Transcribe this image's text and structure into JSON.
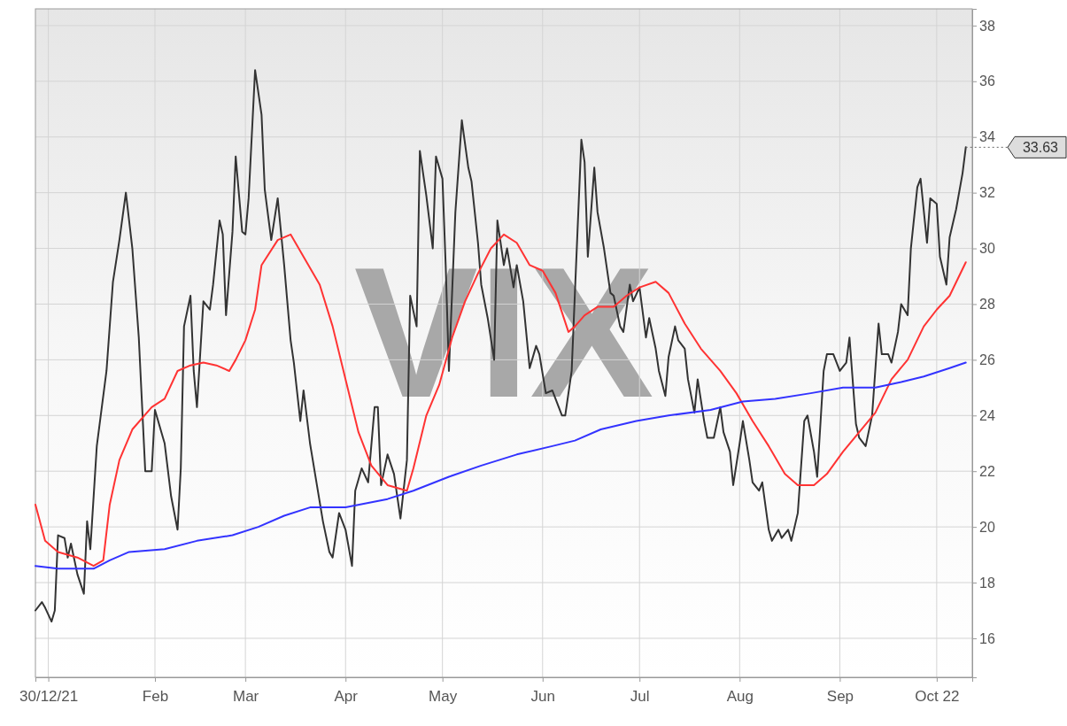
{
  "chart_data": {
    "type": "line",
    "title": "VIX",
    "xlim": [
      "2021-12-26",
      "2022-10-12"
    ],
    "ylim": [
      14.6,
      38.6
    ],
    "xticks": [
      {
        "value": "2021-12-30",
        "label": "30/12/21"
      },
      {
        "value": "2022-02-01",
        "label": "Feb"
      },
      {
        "value": "2022-03-01",
        "label": "Mar"
      },
      {
        "value": "2022-04-01",
        "label": "Apr"
      },
      {
        "value": "2022-05-01",
        "label": "May"
      },
      {
        "value": "2022-06-01",
        "label": "Jun"
      },
      {
        "value": "2022-07-01",
        "label": "Jul"
      },
      {
        "value": "2022-08-01",
        "label": "Aug"
      },
      {
        "value": "2022-09-01",
        "label": "Sep"
      },
      {
        "value": "2022-10-01",
        "label": "Oct 22"
      }
    ],
    "yticks": [
      16,
      18,
      20,
      22,
      24,
      26,
      28,
      30,
      32,
      34,
      36,
      38
    ],
    "grid": true,
    "marker": "none",
    "line_style": "solid",
    "annotations": [
      {
        "text": "33.63",
        "x": "2022-10-10",
        "y": 33.63
      }
    ],
    "series": [
      {
        "color": "#333333",
        "x": [
          "2021-12-26",
          "2021-12-28",
          "2021-12-29",
          "2021-12-31",
          "2022-01-01",
          "2022-01-02",
          "2022-01-04",
          "2022-01-05",
          "2022-01-06",
          "2022-01-08",
          "2022-01-10",
          "2022-01-11",
          "2022-01-12",
          "2022-01-14",
          "2022-01-17",
          "2022-01-19",
          "2022-01-21",
          "2022-01-23",
          "2022-01-25",
          "2022-01-27",
          "2022-01-29",
          "2022-01-31",
          "2022-02-01",
          "2022-02-03",
          "2022-02-04",
          "2022-02-06",
          "2022-02-08",
          "2022-02-09",
          "2022-02-10",
          "2022-02-12",
          "2022-02-13",
          "2022-02-14",
          "2022-02-16",
          "2022-02-18",
          "2022-02-19",
          "2022-02-21",
          "2022-02-22",
          "2022-02-23",
          "2022-02-25",
          "2022-02-26",
          "2022-02-28",
          "2022-03-01",
          "2022-03-02",
          "2022-03-04",
          "2022-03-06",
          "2022-03-07",
          "2022-03-09",
          "2022-03-11",
          "2022-03-13",
          "2022-03-15",
          "2022-03-16",
          "2022-03-18",
          "2022-03-19",
          "2022-03-21",
          "2022-03-23",
          "2022-03-25",
          "2022-03-27",
          "2022-03-28",
          "2022-03-30",
          "2022-04-01",
          "2022-04-03",
          "2022-04-04",
          "2022-04-06",
          "2022-04-08",
          "2022-04-10",
          "2022-04-11",
          "2022-04-12",
          "2022-04-14",
          "2022-04-16",
          "2022-04-18",
          "2022-04-20",
          "2022-04-21",
          "2022-04-23",
          "2022-04-24",
          "2022-04-26",
          "2022-04-28",
          "2022-04-29",
          "2022-05-01",
          "2022-05-02",
          "2022-05-03",
          "2022-05-05",
          "2022-05-07",
          "2022-05-09",
          "2022-05-10",
          "2022-05-12",
          "2022-05-13",
          "2022-05-15",
          "2022-05-17",
          "2022-05-18",
          "2022-05-20",
          "2022-05-21",
          "2022-05-23",
          "2022-05-24",
          "2022-05-26",
          "2022-05-28",
          "2022-05-30",
          "2022-05-31",
          "2022-06-02",
          "2022-06-04",
          "2022-06-07",
          "2022-06-08",
          "2022-06-10",
          "2022-06-11",
          "2022-06-13",
          "2022-06-14",
          "2022-06-15",
          "2022-06-17",
          "2022-06-18",
          "2022-06-20",
          "2022-06-22",
          "2022-06-23",
          "2022-06-25",
          "2022-06-26",
          "2022-06-28",
          "2022-06-29",
          "2022-07-01",
          "2022-07-03",
          "2022-07-04",
          "2022-07-06",
          "2022-07-07",
          "2022-07-09",
          "2022-07-10",
          "2022-07-12",
          "2022-07-13",
          "2022-07-15",
          "2022-07-16",
          "2022-07-18",
          "2022-07-19",
          "2022-07-21",
          "2022-07-22",
          "2022-07-24",
          "2022-07-26",
          "2022-07-27",
          "2022-07-29",
          "2022-07-30",
          "2022-08-01",
          "2022-08-02",
          "2022-08-04",
          "2022-08-05",
          "2022-08-07",
          "2022-08-08",
          "2022-08-10",
          "2022-08-11",
          "2022-08-13",
          "2022-08-14",
          "2022-08-16",
          "2022-08-17",
          "2022-08-19",
          "2022-08-21",
          "2022-08-22",
          "2022-08-24",
          "2022-08-25",
          "2022-08-27",
          "2022-08-28",
          "2022-08-30",
          "2022-09-01",
          "2022-09-03",
          "2022-09-04",
          "2022-09-06",
          "2022-09-07",
          "2022-09-09",
          "2022-09-11",
          "2022-09-13",
          "2022-09-14",
          "2022-09-16",
          "2022-09-17",
          "2022-09-19",
          "2022-09-20",
          "2022-09-22",
          "2022-09-23",
          "2022-09-25",
          "2022-09-26",
          "2022-09-28",
          "2022-09-29",
          "2022-10-01",
          "2022-10-02",
          "2022-10-04",
          "2022-10-05",
          "2022-10-07",
          "2022-10-09",
          "2022-10-10"
        ],
        "values": [
          17.0,
          17.3,
          17.1,
          16.6,
          17.0,
          19.7,
          19.6,
          18.9,
          19.4,
          18.3,
          17.6,
          20.2,
          19.2,
          22.9,
          25.6,
          28.8,
          30.3,
          32.0,
          30.0,
          26.8,
          22.0,
          22.0,
          24.2,
          23.4,
          23.0,
          21.1,
          19.9,
          22.1,
          27.2,
          28.3,
          25.6,
          24.3,
          28.1,
          27.8,
          28.7,
          31.0,
          30.5,
          27.6,
          30.6,
          33.3,
          30.6,
          30.5,
          31.8,
          36.4,
          34.8,
          32.1,
          30.3,
          31.8,
          29.4,
          26.7,
          25.9,
          23.8,
          24.9,
          23.0,
          21.6,
          20.2,
          19.1,
          18.9,
          20.5,
          19.9,
          18.6,
          21.3,
          22.1,
          21.6,
          24.3,
          24.3,
          21.5,
          22.6,
          21.9,
          20.3,
          22.4,
          28.3,
          27.2,
          33.5,
          31.9,
          30.0,
          33.3,
          32.5,
          29.4,
          25.6,
          31.3,
          34.6,
          32.9,
          32.4,
          30.2,
          28.7,
          27.5,
          26.0,
          31.0,
          29.4,
          30.0,
          28.6,
          29.4,
          28.1,
          25.7,
          26.5,
          26.2,
          24.8,
          24.9,
          24.0,
          24.0,
          25.6,
          28.4,
          33.9,
          33.1,
          29.7,
          32.9,
          31.3,
          30.0,
          28.4,
          28.3,
          27.2,
          27.0,
          28.7,
          28.1,
          28.6,
          26.8,
          27.5,
          26.4,
          25.6,
          24.7,
          26.1,
          27.2,
          26.7,
          26.4,
          25.3,
          24.1,
          25.3,
          23.8,
          23.2,
          23.2,
          24.3,
          23.4,
          22.7,
          21.5,
          23.0,
          23.8,
          22.4,
          21.6,
          21.3,
          21.6,
          19.9,
          19.5,
          19.9,
          19.6,
          19.9,
          19.5,
          20.5,
          23.8,
          24.0,
          22.7,
          21.8,
          25.6,
          26.2,
          26.2,
          25.6,
          25.9,
          26.8,
          23.7,
          23.2,
          22.9,
          24.0,
          27.3,
          26.2,
          26.2,
          25.9,
          27.0,
          28.0,
          27.6,
          30.0,
          32.2,
          32.5,
          30.2,
          31.8,
          31.6,
          29.7,
          28.7,
          30.4,
          31.4,
          32.7,
          33.63
        ]
      },
      {
        "color": "#ff3333",
        "x": [
          "2021-12-26",
          "2021-12-29",
          "2022-01-02",
          "2022-01-08",
          "2022-01-13",
          "2022-01-16",
          "2022-01-18",
          "2022-01-21",
          "2022-01-25",
          "2022-01-31",
          "2022-02-04",
          "2022-02-08",
          "2022-02-12",
          "2022-02-16",
          "2022-02-20",
          "2022-02-24",
          "2022-02-26",
          "2022-03-01",
          "2022-03-04",
          "2022-03-06",
          "2022-03-11",
          "2022-03-15",
          "2022-03-19",
          "2022-03-24",
          "2022-03-28",
          "2022-04-01",
          "2022-04-05",
          "2022-04-09",
          "2022-04-14",
          "2022-04-20",
          "2022-04-22",
          "2022-04-26",
          "2022-04-30",
          "2022-05-04",
          "2022-05-08",
          "2022-05-12",
          "2022-05-16",
          "2022-05-20",
          "2022-05-24",
          "2022-05-28",
          "2022-06-01",
          "2022-06-05",
          "2022-06-09",
          "2022-06-11",
          "2022-06-14",
          "2022-06-18",
          "2022-06-23",
          "2022-06-27",
          "2022-07-01",
          "2022-07-06",
          "2022-07-10",
          "2022-07-15",
          "2022-07-20",
          "2022-07-26",
          "2022-07-31",
          "2022-08-05",
          "2022-08-10",
          "2022-08-15",
          "2022-08-19",
          "2022-08-24",
          "2022-08-28",
          "2022-09-02",
          "2022-09-07",
          "2022-09-12",
          "2022-09-17",
          "2022-09-22",
          "2022-09-27",
          "2022-10-01",
          "2022-10-05",
          "2022-10-10"
        ],
        "values": [
          20.8,
          19.5,
          19.1,
          18.9,
          18.6,
          18.8,
          20.8,
          22.4,
          23.5,
          24.3,
          24.6,
          25.6,
          25.8,
          25.9,
          25.8,
          25.6,
          26.0,
          26.7,
          27.8,
          29.4,
          30.3,
          30.5,
          29.7,
          28.7,
          27.2,
          25.3,
          23.4,
          22.2,
          21.5,
          21.3,
          22.1,
          24.0,
          25.1,
          26.8,
          28.1,
          29.1,
          30.0,
          30.5,
          30.2,
          29.4,
          29.2,
          28.4,
          27.0,
          27.2,
          27.6,
          27.9,
          27.9,
          28.3,
          28.6,
          28.8,
          28.4,
          27.3,
          26.4,
          25.6,
          24.8,
          23.8,
          22.9,
          21.9,
          21.5,
          21.5,
          21.9,
          22.7,
          23.4,
          24.1,
          25.3,
          26.0,
          27.2,
          27.8,
          28.3,
          29.5
        ]
      },
      {
        "color": "#3333ff",
        "x": [
          "2021-12-26",
          "2022-01-02",
          "2022-01-13",
          "2022-01-18",
          "2022-01-24",
          "2022-02-04",
          "2022-02-14",
          "2022-02-25",
          "2022-03-05",
          "2022-03-13",
          "2022-03-21",
          "2022-04-01",
          "2022-04-14",
          "2022-04-22",
          "2022-05-03",
          "2022-05-13",
          "2022-05-24",
          "2022-06-04",
          "2022-06-11",
          "2022-06-19",
          "2022-06-30",
          "2022-07-10",
          "2022-07-23",
          "2022-08-02",
          "2022-08-12",
          "2022-08-23",
          "2022-09-02",
          "2022-09-12",
          "2022-09-20",
          "2022-09-27",
          "2022-10-05",
          "2022-10-10"
        ],
        "values": [
          18.6,
          18.5,
          18.5,
          18.8,
          19.1,
          19.2,
          19.5,
          19.7,
          20.0,
          20.4,
          20.7,
          20.7,
          21.0,
          21.3,
          21.8,
          22.2,
          22.6,
          22.9,
          23.1,
          23.5,
          23.8,
          24.0,
          24.2,
          24.5,
          24.6,
          24.8,
          25.0,
          25.0,
          25.2,
          25.4,
          25.7,
          25.9
        ]
      }
    ]
  }
}
